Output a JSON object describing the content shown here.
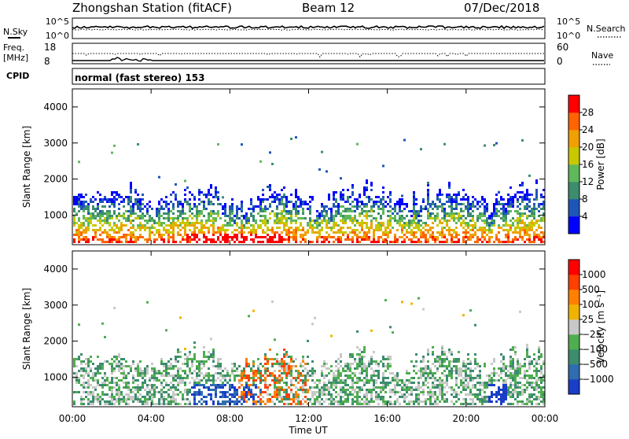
{
  "header": {
    "station": "Zhongshan Station (fitACF)",
    "beam": "Beam 12",
    "date": "07/Dec/2018"
  },
  "labels": {
    "nsky": "N.Sky",
    "nsearch": "N.Search",
    "freq_line1": "Freq.",
    "freq_line2": "[MHz]",
    "nave": "Nave",
    "cpid": "CPID",
    "cpid_text": "normal (fast stereo) 153",
    "noise_top_left": "10^5",
    "noise_bottom_left": "10^0",
    "noise_top_right": "10^5",
    "noise_bottom_right": "10^0",
    "freq_top": "18",
    "freq_bottom": "8",
    "nave_top": "60",
    "nave_bottom": "0"
  },
  "chart_data": [
    {
      "type": "heatmap",
      "title": "",
      "ylabel": "Slant Range [km]",
      "xlabel": "",
      "ylim": [
        180,
        4500
      ],
      "yticks": [
        "1000",
        "2000",
        "3000",
        "4000"
      ],
      "xticks": [
        "00:00",
        "04:00",
        "08:00",
        "12:00",
        "16:00",
        "20:00",
        "00:00"
      ],
      "colorbar": {
        "label": "Power [dB]",
        "ticks": [
          "4",
          "8",
          "12",
          "16",
          "20",
          "24",
          "28"
        ],
        "colors": [
          "#0000ff",
          "#1e56b8",
          "#3c8c6e",
          "#5fb85a",
          "#c8c800",
          "#f0a000",
          "#ff6400",
          "#ff0000"
        ]
      }
    },
    {
      "type": "heatmap",
      "title": "",
      "ylabel": "Slant Range [km]",
      "xlabel": "Time UT",
      "ylim": [
        180,
        4500
      ],
      "yticks": [
        "1000",
        "2000",
        "3000",
        "4000"
      ],
      "xticks": [
        "00:00",
        "04:00",
        "08:00",
        "12:00",
        "16:00",
        "20:00",
        "00:00"
      ],
      "colorbar": {
        "label": "Velocity [m s⁻¹]",
        "ticks": [
          "1000",
          "500",
          "100",
          "25",
          "−25",
          "−100",
          "−500",
          "−1000"
        ],
        "colors": [
          "#1a3ec8",
          "#2f6db0",
          "#3c8c6e",
          "#4fae4f",
          "#c8c8c8",
          "#f0b400",
          "#ff8000",
          "#ff4000",
          "#ff0000"
        ]
      }
    }
  ]
}
